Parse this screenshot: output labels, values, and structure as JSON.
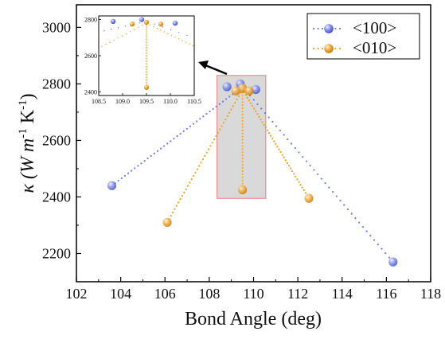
{
  "chart_data": {
    "type": "scatter",
    "xlabel": "Bond Angle (deg)",
    "ylabel_main": "κ (W m",
    "ylabel_sup1": "-1",
    "ylabel_mid": " K",
    "ylabel_sup2": "-1",
    "ylabel_end": ")",
    "xlim": [
      102,
      118
    ],
    "ylim": [
      2100,
      3080
    ],
    "xticks": [
      102,
      104,
      106,
      108,
      110,
      112,
      114,
      116,
      118
    ],
    "yticks": [
      2200,
      2400,
      2600,
      2800,
      3000
    ],
    "colors": {
      "blue": "#6b7be8",
      "orange": "#eea020",
      "highlight_fill": "#d9d9d9",
      "highlight_stroke": "#f08c8c"
    },
    "legend": {
      "placement": "top-right",
      "entries": [
        {
          "label": "<100>",
          "color": "#6b7be8"
        },
        {
          "label": "<010>",
          "color": "#eea020"
        }
      ]
    },
    "series": [
      {
        "name": "<100>",
        "color": "#6b7be8",
        "peak": {
          "x": 109.5,
          "y": 2790
        },
        "ends": [
          {
            "x": 103.6,
            "y": 2440
          },
          {
            "x": 116.3,
            "y": 2170
          }
        ],
        "markers": [
          {
            "x": 103.6,
            "y": 2440
          },
          {
            "x": 108.8,
            "y": 2790
          },
          {
            "x": 109.4,
            "y": 2800
          },
          {
            "x": 110.1,
            "y": 2780
          },
          {
            "x": 116.3,
            "y": 2170
          }
        ]
      },
      {
        "name": "<010>",
        "color": "#eea020",
        "peak": {
          "x": 109.5,
          "y": 2780
        },
        "ends": [
          {
            "x": 106.1,
            "y": 2310
          },
          {
            "x": 112.5,
            "y": 2395
          }
        ],
        "dip": {
          "x": 109.5,
          "y": 2425
        },
        "markers": [
          {
            "x": 106.1,
            "y": 2310
          },
          {
            "x": 109.2,
            "y": 2775
          },
          {
            "x": 109.5,
            "y": 2785
          },
          {
            "x": 109.8,
            "y": 2775
          },
          {
            "x": 109.5,
            "y": 2425
          },
          {
            "x": 112.5,
            "y": 2395
          }
        ]
      }
    ],
    "highlight_box": {
      "x": [
        108.35,
        110.55
      ],
      "y": [
        2395,
        2830
      ]
    },
    "inset": {
      "xlim": [
        108.5,
        110.5
      ],
      "ylim": [
        2380,
        2820
      ],
      "xticks": [
        108.5,
        109.0,
        109.5,
        110.0,
        110.5
      ],
      "xtick_labels": [
        "108.5",
        "109.0",
        "109.5",
        "110.0",
        "110.5"
      ],
      "yticks": [
        2400,
        2600,
        2800
      ],
      "series": [
        {
          "name": "<100>",
          "color": "#6b7be8",
          "markers": [
            {
              "x": 108.8,
              "y": 2790
            },
            {
              "x": 109.4,
              "y": 2800
            },
            {
              "x": 110.1,
              "y": 2780
            }
          ]
        },
        {
          "name": "<010>",
          "color": "#eea020",
          "markers": [
            {
              "x": 109.2,
              "y": 2775
            },
            {
              "x": 109.5,
              "y": 2785
            },
            {
              "x": 109.8,
              "y": 2775
            },
            {
              "x": 109.5,
              "y": 2425
            }
          ]
        }
      ]
    }
  }
}
